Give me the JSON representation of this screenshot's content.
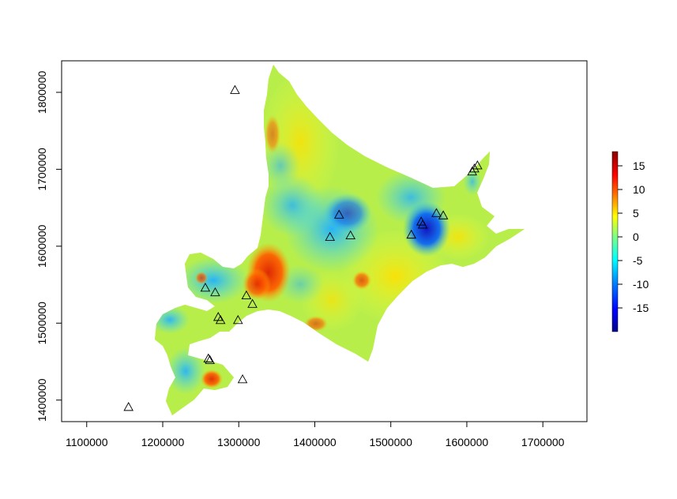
{
  "chart_data": {
    "type": "raster-map",
    "title": "",
    "xlabel": "",
    "ylabel": "",
    "xlim": [
      1067000,
      1758000
    ],
    "ylim": [
      1372000,
      1841000
    ],
    "x_ticks": [
      {
        "value": 1100000,
        "label": "1100000"
      },
      {
        "value": 1200000,
        "label": "1200000"
      },
      {
        "value": 1300000,
        "label": "1300000"
      },
      {
        "value": 1400000,
        "label": "1400000"
      },
      {
        "value": 1500000,
        "label": "1500000"
      },
      {
        "value": 1600000,
        "label": "1600000"
      },
      {
        "value": 1700000,
        "label": "1700000"
      }
    ],
    "y_ticks": [
      {
        "value": 1400000,
        "label": "1400000"
      },
      {
        "value": 1500000,
        "label": "1500000"
      },
      {
        "value": 1600000,
        "label": "1600000"
      },
      {
        "value": 1700000,
        "label": "1700000"
      },
      {
        "value": 1800000,
        "label": "1800000"
      }
    ],
    "colorbar": {
      "min": -20,
      "max": 18,
      "ticks": [
        {
          "value": 15,
          "label": "15"
        },
        {
          "value": 10,
          "label": "10"
        },
        {
          "value": 5,
          "label": "5"
        },
        {
          "value": 0,
          "label": "0"
        },
        {
          "value": -5,
          "label": "-5"
        },
        {
          "value": -10,
          "label": "-10"
        },
        {
          "value": -15,
          "label": "-15"
        }
      ],
      "colors": [
        "#00008b",
        "#0000ff",
        "#0080ff",
        "#00ffff",
        "#80ff80",
        "#ffff00",
        "#ff8000",
        "#ff0000",
        "#8b0000"
      ]
    },
    "points": [
      {
        "x": 1295000,
        "y": 1803000
      },
      {
        "x": 1155000,
        "y": 1391000
      },
      {
        "x": 1305000,
        "y": 1427000
      },
      {
        "x": 1260000,
        "y": 1454000
      },
      {
        "x": 1262000,
        "y": 1452000
      },
      {
        "x": 1273000,
        "y": 1508000
      },
      {
        "x": 1276000,
        "y": 1504000
      },
      {
        "x": 1299000,
        "y": 1504000
      },
      {
        "x": 1256000,
        "y": 1546000
      },
      {
        "x": 1269000,
        "y": 1540000
      },
      {
        "x": 1310000,
        "y": 1536000
      },
      {
        "x": 1318000,
        "y": 1525000
      },
      {
        "x": 1420000,
        "y": 1612000
      },
      {
        "x": 1432000,
        "y": 1641000
      },
      {
        "x": 1447000,
        "y": 1614000
      },
      {
        "x": 1527000,
        "y": 1615000
      },
      {
        "x": 1540000,
        "y": 1632000
      },
      {
        "x": 1542000,
        "y": 1628000
      },
      {
        "x": 1560000,
        "y": 1643000
      },
      {
        "x": 1569000,
        "y": 1640000
      },
      {
        "x": 1607000,
        "y": 1697000
      },
      {
        "x": 1610000,
        "y": 1701000
      },
      {
        "x": 1614000,
        "y": 1705000
      }
    ]
  }
}
